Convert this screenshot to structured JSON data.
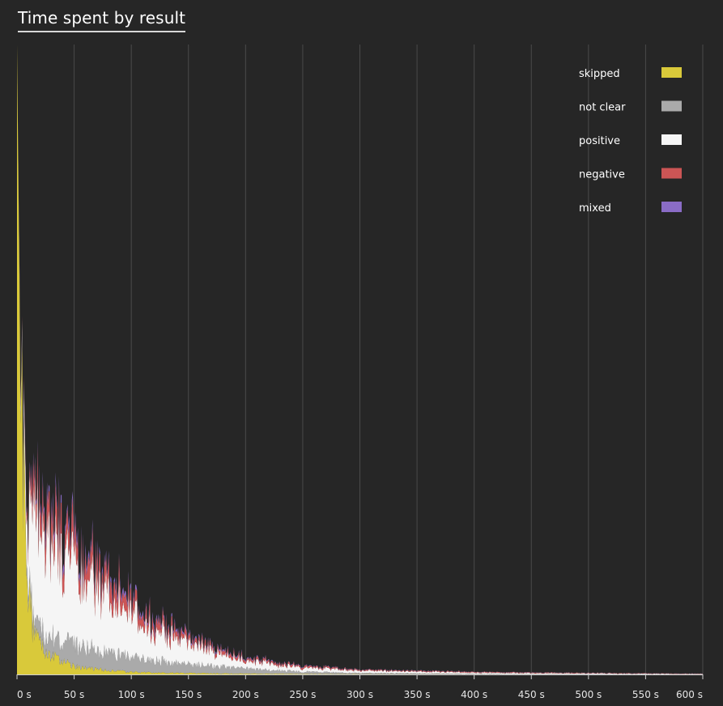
{
  "chart_data": {
    "type": "area",
    "title": "Time spent by result",
    "xlabel": "",
    "ylabel": "",
    "xlim": [
      0,
      600
    ],
    "x_ticks": [
      0,
      50,
      100,
      150,
      200,
      250,
      300,
      350,
      400,
      450,
      500,
      550,
      600
    ],
    "x_tick_labels": [
      "0 s",
      "50 s",
      "100 s",
      "150 s",
      "200 s",
      "250 s",
      "300 s",
      "350 s",
      "400 s",
      "450 s",
      "500 s",
      "550 s",
      "600 s"
    ],
    "stacked": true,
    "grid": "vertical",
    "legend_position": "top-right",
    "series": [
      {
        "name": "skipped",
        "color": "#d9c93a",
        "x": [
          0,
          2,
          5,
          8,
          12,
          16,
          20,
          25,
          30,
          40,
          50,
          60,
          80,
          100,
          130,
          160,
          200,
          250,
          300,
          400,
          500,
          600
        ],
        "values": [
          780,
          500,
          260,
          140,
          80,
          50,
          35,
          28,
          22,
          15,
          11,
          8,
          5,
          3,
          2,
          1.5,
          1,
          0.5,
          0.3,
          0.1,
          0.05,
          0
        ]
      },
      {
        "name": "not clear",
        "color": "#aaaaaa",
        "x": [
          0,
          2,
          5,
          8,
          12,
          16,
          20,
          25,
          30,
          40,
          50,
          60,
          80,
          100,
          130,
          160,
          200,
          250,
          300,
          400,
          500,
          600
        ],
        "values": [
          0,
          5,
          8,
          10,
          14,
          16,
          20,
          25,
          24,
          25,
          28,
          26,
          22,
          18,
          14,
          10,
          6,
          3,
          1.5,
          0.5,
          0.2,
          0.1
        ]
      },
      {
        "name": "positive",
        "color": "#f5f5f5",
        "x": [
          0,
          2,
          5,
          8,
          12,
          16,
          20,
          25,
          30,
          40,
          50,
          60,
          80,
          100,
          130,
          160,
          200,
          250,
          300,
          400,
          500,
          600
        ],
        "values": [
          0,
          5,
          20,
          60,
          105,
          130,
          140,
          125,
          115,
          105,
          100,
          90,
          70,
          55,
          35,
          22,
          10,
          5,
          3,
          1.5,
          1,
          0.5
        ]
      },
      {
        "name": "negative",
        "color": "#cc5555",
        "x": [
          0,
          2,
          5,
          8,
          12,
          16,
          20,
          25,
          30,
          40,
          50,
          60,
          80,
          100,
          130,
          160,
          200,
          250,
          300,
          400,
          500,
          600
        ],
        "values": [
          0,
          2,
          5,
          12,
          20,
          25,
          28,
          28,
          30,
          30,
          28,
          25,
          20,
          16,
          10,
          6,
          3,
          2,
          1,
          0.8,
          0.5,
          0.3
        ]
      },
      {
        "name": "mixed",
        "color": "#8a6cc6",
        "x": [
          0,
          2,
          5,
          8,
          12,
          16,
          20,
          25,
          30,
          40,
          50,
          60,
          80,
          100,
          130,
          160,
          200,
          250,
          300,
          400,
          500,
          600
        ],
        "values": [
          0,
          0.5,
          1,
          3,
          5,
          6,
          7,
          7,
          8,
          8,
          7,
          6,
          5,
          4,
          3,
          2,
          1,
          0.5,
          0.3,
          0.2,
          0.1,
          0.1
        ]
      }
    ]
  }
}
